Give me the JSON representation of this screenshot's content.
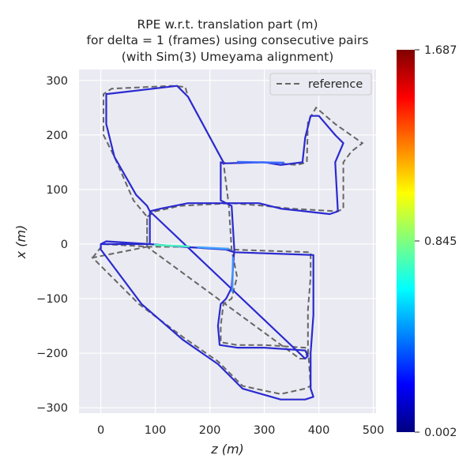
{
  "chart_data": {
    "type": "line",
    "title_lines": [
      "RPE w.r.t. translation part (m)",
      "for delta = 1 (frames) using consecutive pairs",
      "(with Sim(3) Umeyama alignment)"
    ],
    "xlabel": "z (m)",
    "ylabel": "x (m)",
    "xlim": [
      -40,
      505
    ],
    "ylim": [
      -310,
      320
    ],
    "xticks": [
      0,
      100,
      200,
      300,
      400,
      500
    ],
    "yticks": [
      -300,
      -200,
      -100,
      0,
      100,
      200,
      300
    ],
    "grid": true,
    "legend": {
      "placement": "top-right",
      "entries": [
        "reference"
      ]
    },
    "colorbar": {
      "min": 0.002,
      "mid": 0.845,
      "max": 1.687,
      "labels": [
        "1.687",
        "0.845",
        "0.002"
      ],
      "colormap": "jet"
    },
    "colors": {
      "reference": "#666666",
      "background": "#eaeaf2",
      "grid": "#ffffff"
    },
    "series": [
      {
        "name": "reference",
        "style": "dashed",
        "points": [
          [
            -15,
            -25
          ],
          [
            5,
            0
          ],
          [
            90,
            -5
          ],
          [
            150,
            -5
          ],
          [
            240,
            -10
          ],
          [
            385,
            -15
          ],
          [
            385,
            -60
          ],
          [
            380,
            -120
          ],
          [
            380,
            -190
          ],
          [
            385,
            -260
          ],
          [
            375,
            -265
          ],
          [
            330,
            -275
          ],
          [
            260,
            -260
          ],
          [
            215,
            -215
          ],
          [
            150,
            -170
          ],
          [
            70,
            -110
          ],
          [
            -15,
            -25
          ],
          [
            85,
            -5
          ],
          [
            85,
            50
          ],
          [
            100,
            60
          ],
          [
            145,
            70
          ],
          [
            240,
            75
          ],
          [
            300,
            70
          ],
          [
            350,
            65
          ],
          [
            435,
            60
          ],
          [
            445,
            65
          ],
          [
            445,
            150
          ],
          [
            460,
            170
          ],
          [
            480,
            185
          ],
          [
            430,
            220
          ],
          [
            395,
            250
          ],
          [
            380,
            225
          ],
          [
            378,
            150
          ],
          [
            360,
            145
          ],
          [
            300,
            150
          ],
          [
            230,
            148
          ],
          [
            225,
            150
          ],
          [
            235,
            70
          ],
          [
            240,
            -10
          ],
          [
            250,
            -60
          ],
          [
            240,
            -100
          ],
          [
            225,
            -110
          ],
          [
            220,
            -150
          ],
          [
            220,
            -180
          ],
          [
            250,
            -185
          ],
          [
            300,
            -185
          ],
          [
            375,
            -190
          ],
          [
            380,
            -195
          ],
          [
            375,
            -210
          ],
          [
            365,
            -210
          ],
          [
            85,
            -5
          ],
          [
            85,
            50
          ],
          [
            60,
            80
          ],
          [
            25,
            160
          ],
          [
            5,
            200
          ],
          [
            5,
            275
          ],
          [
            20,
            285
          ],
          [
            130,
            290
          ],
          [
            155,
            288
          ],
          [
            160,
            270
          ],
          [
            225,
            150
          ]
        ]
      },
      {
        "name": "estimate",
        "style": "solid",
        "points": [
          [
            0,
            0
          ],
          [
            10,
            5
          ],
          [
            90,
            0
          ],
          [
            150,
            -5
          ],
          [
            230,
            -10
          ],
          [
            245,
            -15
          ],
          [
            390,
            -20
          ],
          [
            390,
            -30
          ],
          [
            390,
            -130
          ],
          [
            385,
            -200
          ],
          [
            385,
            -265
          ],
          [
            390,
            -280
          ],
          [
            375,
            -285
          ],
          [
            330,
            -285
          ],
          [
            260,
            -265
          ],
          [
            215,
            -220
          ],
          [
            150,
            -175
          ],
          [
            75,
            -110
          ],
          [
            0,
            -10
          ],
          [
            0,
            0
          ],
          [
            90,
            0
          ],
          [
            90,
            60
          ],
          [
            110,
            65
          ],
          [
            160,
            75
          ],
          [
            230,
            75
          ],
          [
            290,
            75
          ],
          [
            330,
            65
          ],
          [
            375,
            60
          ],
          [
            420,
            55
          ],
          [
            435,
            60
          ],
          [
            430,
            150
          ],
          [
            445,
            185
          ],
          [
            430,
            200
          ],
          [
            400,
            235
          ],
          [
            385,
            235
          ],
          [
            375,
            195
          ],
          [
            370,
            150
          ],
          [
            330,
            145
          ],
          [
            300,
            150
          ],
          [
            225,
            148
          ],
          [
            220,
            150
          ],
          [
            220,
            80
          ],
          [
            240,
            70
          ],
          [
            245,
            -10
          ],
          [
            240,
            -80
          ],
          [
            230,
            -100
          ],
          [
            220,
            -110
          ],
          [
            215,
            -150
          ],
          [
            218,
            -185
          ],
          [
            250,
            -190
          ],
          [
            300,
            -190
          ],
          [
            375,
            -195
          ],
          [
            380,
            -205
          ],
          [
            375,
            -210
          ],
          [
            90,
            60
          ],
          [
            85,
            70
          ],
          [
            65,
            90
          ],
          [
            25,
            160
          ],
          [
            10,
            220
          ],
          [
            10,
            275
          ],
          [
            140,
            290
          ],
          [
            160,
            270
          ],
          [
            225,
            150
          ]
        ]
      }
    ]
  }
}
